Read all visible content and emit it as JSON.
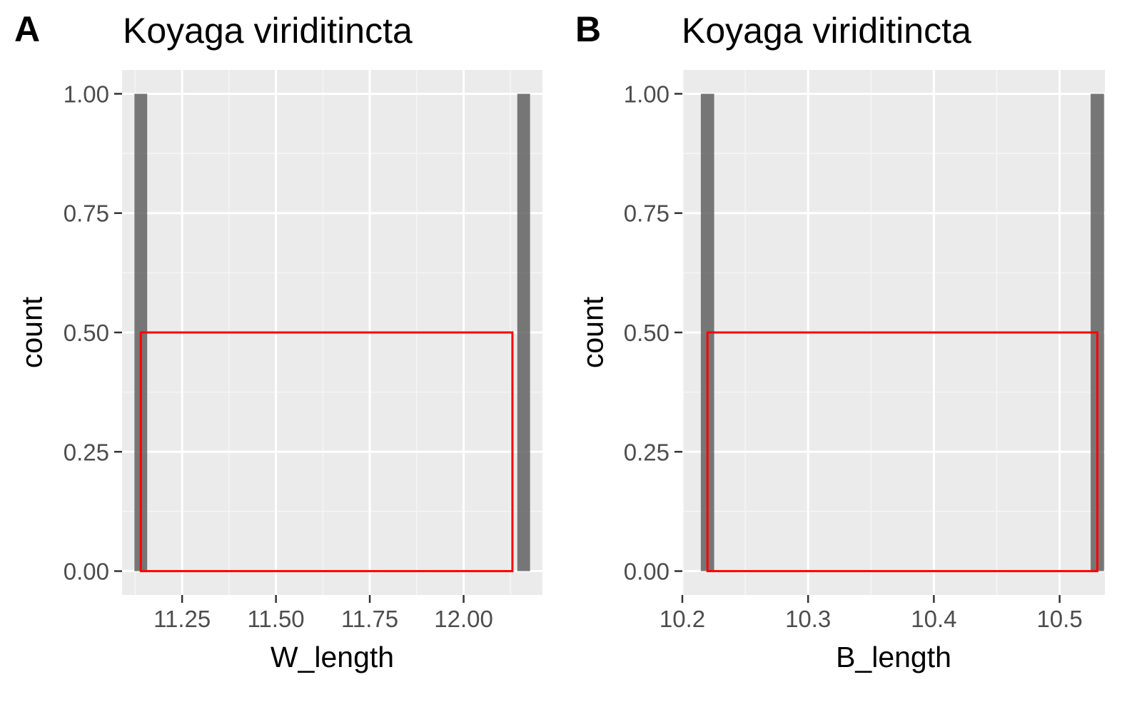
{
  "colors": {
    "panel_bg": "#ebebeb",
    "grid_major": "#ffffff",
    "grid_minor": "#f5f5f5",
    "bar_fill": "#595959",
    "bar_opacity": 0.8,
    "rect_outline": "#ff0000",
    "tick_text": "#4d4d4d",
    "tick_mark": "#333333"
  },
  "chart_data": [
    {
      "type": "bar",
      "panel_tag": "A",
      "title": "Koyaga viriditincta",
      "xlabel": "W_length",
      "ylabel": "count",
      "xlim": [
        11.09,
        12.21
      ],
      "ylim": [
        -0.05,
        1.05
      ],
      "x_ticks": [
        11.25,
        11.5,
        11.75,
        12.0
      ],
      "x_tick_labels": [
        "11.25",
        "11.50",
        "11.75",
        "12.00"
      ],
      "y_ticks": [
        0,
        0.25,
        0.5,
        0.75,
        1.0
      ],
      "y_tick_labels": [
        "0.00",
        "0.25",
        "0.50",
        "0.75",
        "1.00"
      ],
      "bars": [
        {
          "x": 11.14,
          "width": 0.034,
          "count": 1
        },
        {
          "x": 12.16,
          "width": 0.034,
          "count": 1
        }
      ],
      "highlight_rect": {
        "xmin": 11.14,
        "xmax": 12.13,
        "ymin": 0,
        "ymax": 0.5
      },
      "grid": true
    },
    {
      "type": "bar",
      "panel_tag": "B",
      "title": "Koyaga viriditincta",
      "xlabel": "B_length",
      "ylabel": "count",
      "xlim": [
        10.2,
        10.536
      ],
      "ylim": [
        -0.05,
        1.05
      ],
      "x_ticks": [
        10.2,
        10.3,
        10.4,
        10.5
      ],
      "x_tick_labels": [
        "10.2",
        "10.3",
        "10.4",
        "10.5"
      ],
      "y_ticks": [
        0,
        0.25,
        0.5,
        0.75,
        1.0
      ],
      "y_tick_labels": [
        "0.00",
        "0.25",
        "0.50",
        "0.75",
        "1.00"
      ],
      "bars": [
        {
          "x": 10.22,
          "width": 0.0106,
          "count": 1
        },
        {
          "x": 10.53,
          "width": 0.0106,
          "count": 1
        }
      ],
      "highlight_rect": {
        "xmin": 10.22,
        "xmax": 10.53,
        "ymin": 0,
        "ymax": 0.5
      },
      "grid": true
    }
  ]
}
